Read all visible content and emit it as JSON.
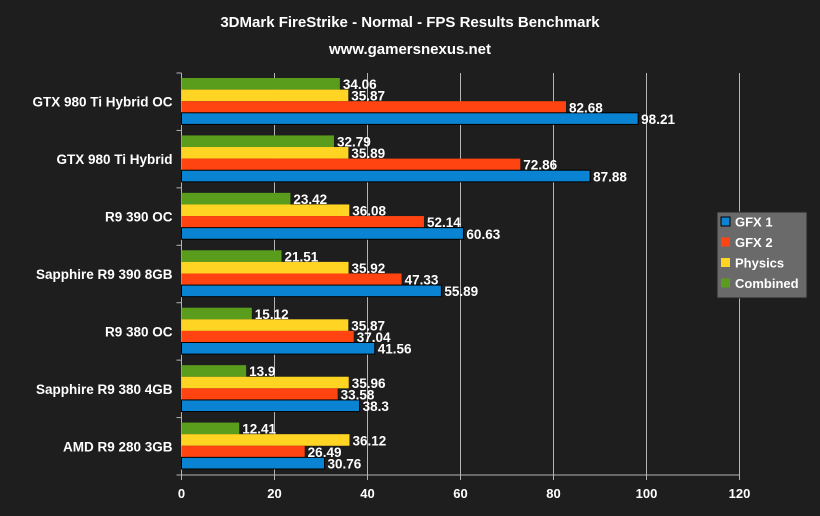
{
  "chart_data": {
    "type": "bar",
    "orientation": "horizontal",
    "title": "3DMark FireStrike - Normal - FPS Results Benchmark",
    "subtitle": "www.gamersnexus.net",
    "categories": [
      "GTX 980 Ti Hybrid OC",
      "GTX 980 Ti Hybrid",
      "R9 390 OC",
      "Sapphire R9 390 8GB",
      "R9 380 OC",
      "Sapphire R9 380 4GB",
      "AMD R9 280 3GB"
    ],
    "series": [
      {
        "name": "GFX 1",
        "color": "#0a84d2",
        "values": [
          98.21,
          87.88,
          60.63,
          55.89,
          41.56,
          38.3,
          30.76
        ]
      },
      {
        "name": "GFX 2",
        "color": "#ff4412",
        "values": [
          82.68,
          72.86,
          52.14,
          47.33,
          37.04,
          33.58,
          26.49
        ]
      },
      {
        "name": "Physics",
        "color": "#ffd422",
        "values": [
          35.87,
          35.89,
          36.08,
          35.92,
          35.87,
          35.96,
          36.12
        ]
      },
      {
        "name": "Combined",
        "color": "#5a9c1c",
        "values": [
          34.06,
          32.79,
          23.42,
          21.51,
          15.12,
          13.9,
          12.41
        ]
      }
    ],
    "xlim": [
      0,
      120
    ],
    "xticks": [
      "0",
      "20",
      "40",
      "60",
      "80",
      "100",
      "120"
    ],
    "grid": true,
    "legend": "right"
  }
}
